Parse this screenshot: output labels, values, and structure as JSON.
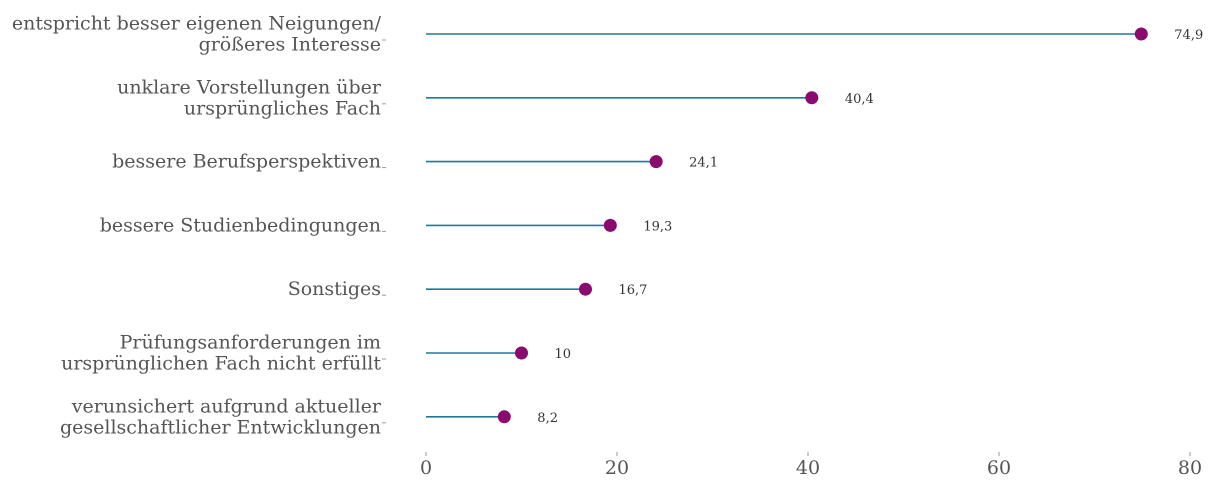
{
  "chart_data": {
    "type": "lollipop",
    "categories": [
      [
        "entspricht besser eigenen Neigungen/",
        "größeres Interesse"
      ],
      [
        "unklare Vorstellungen über",
        "ursprüngliches Fach"
      ],
      [
        "bessere Berufsperspektiven"
      ],
      [
        "bessere Studienbedingungen"
      ],
      [
        "Sonstiges"
      ],
      [
        "Prüfungsanforderungen im",
        "ursprünglichen Fach nicht erfüllt"
      ],
      [
        "verunsichert aufgrund aktueller",
        "gesellschaftlicher Entwicklungen"
      ]
    ],
    "values": [
      74.9,
      40.4,
      24.1,
      19.3,
      16.7,
      10,
      8.2
    ],
    "value_labels": [
      "74,9",
      "40,4",
      "24,1",
      "19,3",
      "16,7",
      "10",
      "8,2"
    ],
    "xlim": [
      0,
      80
    ],
    "xticks": [
      0,
      20,
      40,
      60,
      80
    ],
    "title": "",
    "xlabel": "",
    "ylabel": "",
    "grid": false,
    "colors": {
      "line": "#1f7a99",
      "dot": "#8b0a6e",
      "tick": "#999999"
    }
  }
}
